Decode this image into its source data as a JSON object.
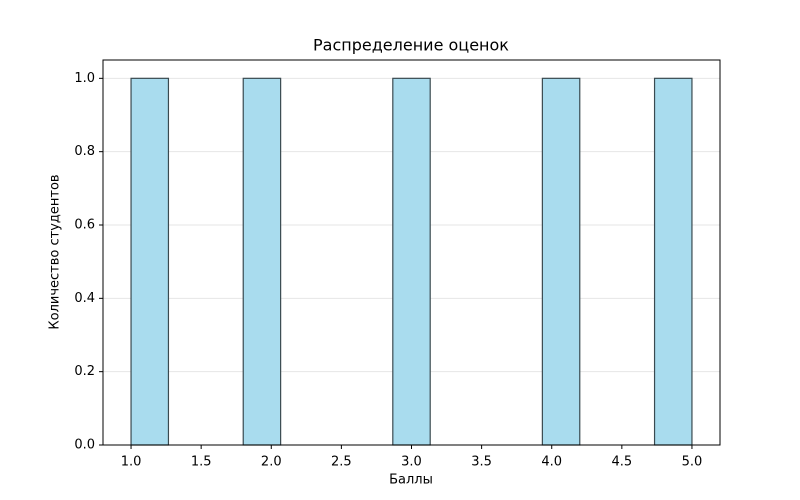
{
  "chart_data": {
    "type": "histogram",
    "title": "Распределение оценок",
    "x_label": "Баллы",
    "y_label": "Количество студентов",
    "bins": [
      1,
      1.2667,
      1.5333,
      1.8,
      2.0667,
      2.3333,
      2.6,
      2.8667,
      3.1333,
      3.4,
      3.6667,
      3.9333,
      4.2,
      4.4667,
      4.7333,
      5
    ],
    "values": [
      1,
      0,
      0,
      1,
      0,
      0,
      0,
      1,
      0,
      0,
      0,
      1,
      0,
      0,
      1
    ],
    "color": "#a9dcee",
    "edge_color": "#3a4a50",
    "xlim": [
      0.8,
      5.2
    ],
    "xticks": [
      {
        "value": 1,
        "label": "1.0"
      },
      {
        "value": 1.5,
        "label": "1.5"
      },
      {
        "value": 2,
        "label": "2.0"
      },
      {
        "value": 2.5,
        "label": "2.5"
      },
      {
        "value": 3,
        "label": "3.0"
      },
      {
        "value": 3.5,
        "label": "3.5"
      },
      {
        "value": 4,
        "label": "4.0"
      },
      {
        "value": 4.5,
        "label": "4.5"
      },
      {
        "value": 5,
        "label": "5.0"
      }
    ],
    "ylim": [
      0,
      1.05
    ],
    "yticks": [
      {
        "value": 0,
        "label": "0.0"
      },
      {
        "value": 0.2,
        "label": "0.2"
      },
      {
        "value": 0.4,
        "label": "0.4"
      },
      {
        "value": 0.6,
        "label": "0.6"
      },
      {
        "value": 0.8,
        "label": "0.8"
      },
      {
        "value": 1,
        "label": "1.0"
      }
    ],
    "grid": true
  }
}
